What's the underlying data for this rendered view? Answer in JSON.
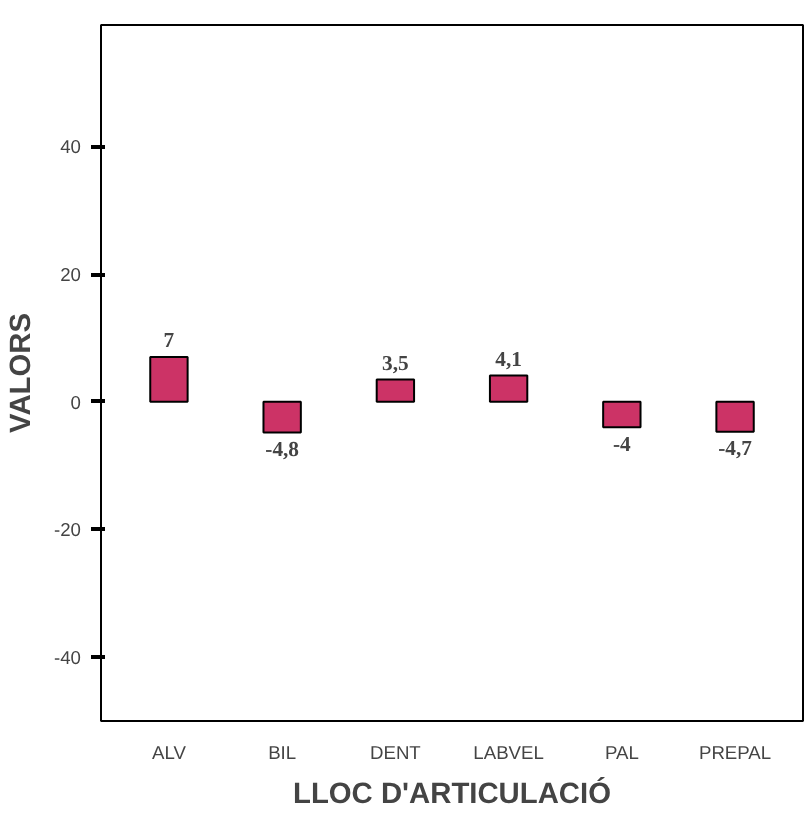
{
  "chart_data": {
    "type": "bar",
    "xlabel": "LLOC D'ARTICULACIÓ",
    "ylabel": "VALORS",
    "categories": [
      "ALV",
      "BIL",
      "DENT",
      "LABVEL",
      "PAL",
      "PREPAL"
    ],
    "values": [
      7,
      -4.8,
      3.5,
      4.1,
      -4,
      -4.7
    ],
    "value_labels": [
      "7",
      "-4,8",
      "3,5",
      "4,1",
      "-4",
      "-4,7"
    ],
    "color": "#cc3366",
    "ylim": [
      -50,
      59
    ],
    "yticks": [
      -40,
      -20,
      0,
      20,
      40
    ],
    "grid": false
  }
}
